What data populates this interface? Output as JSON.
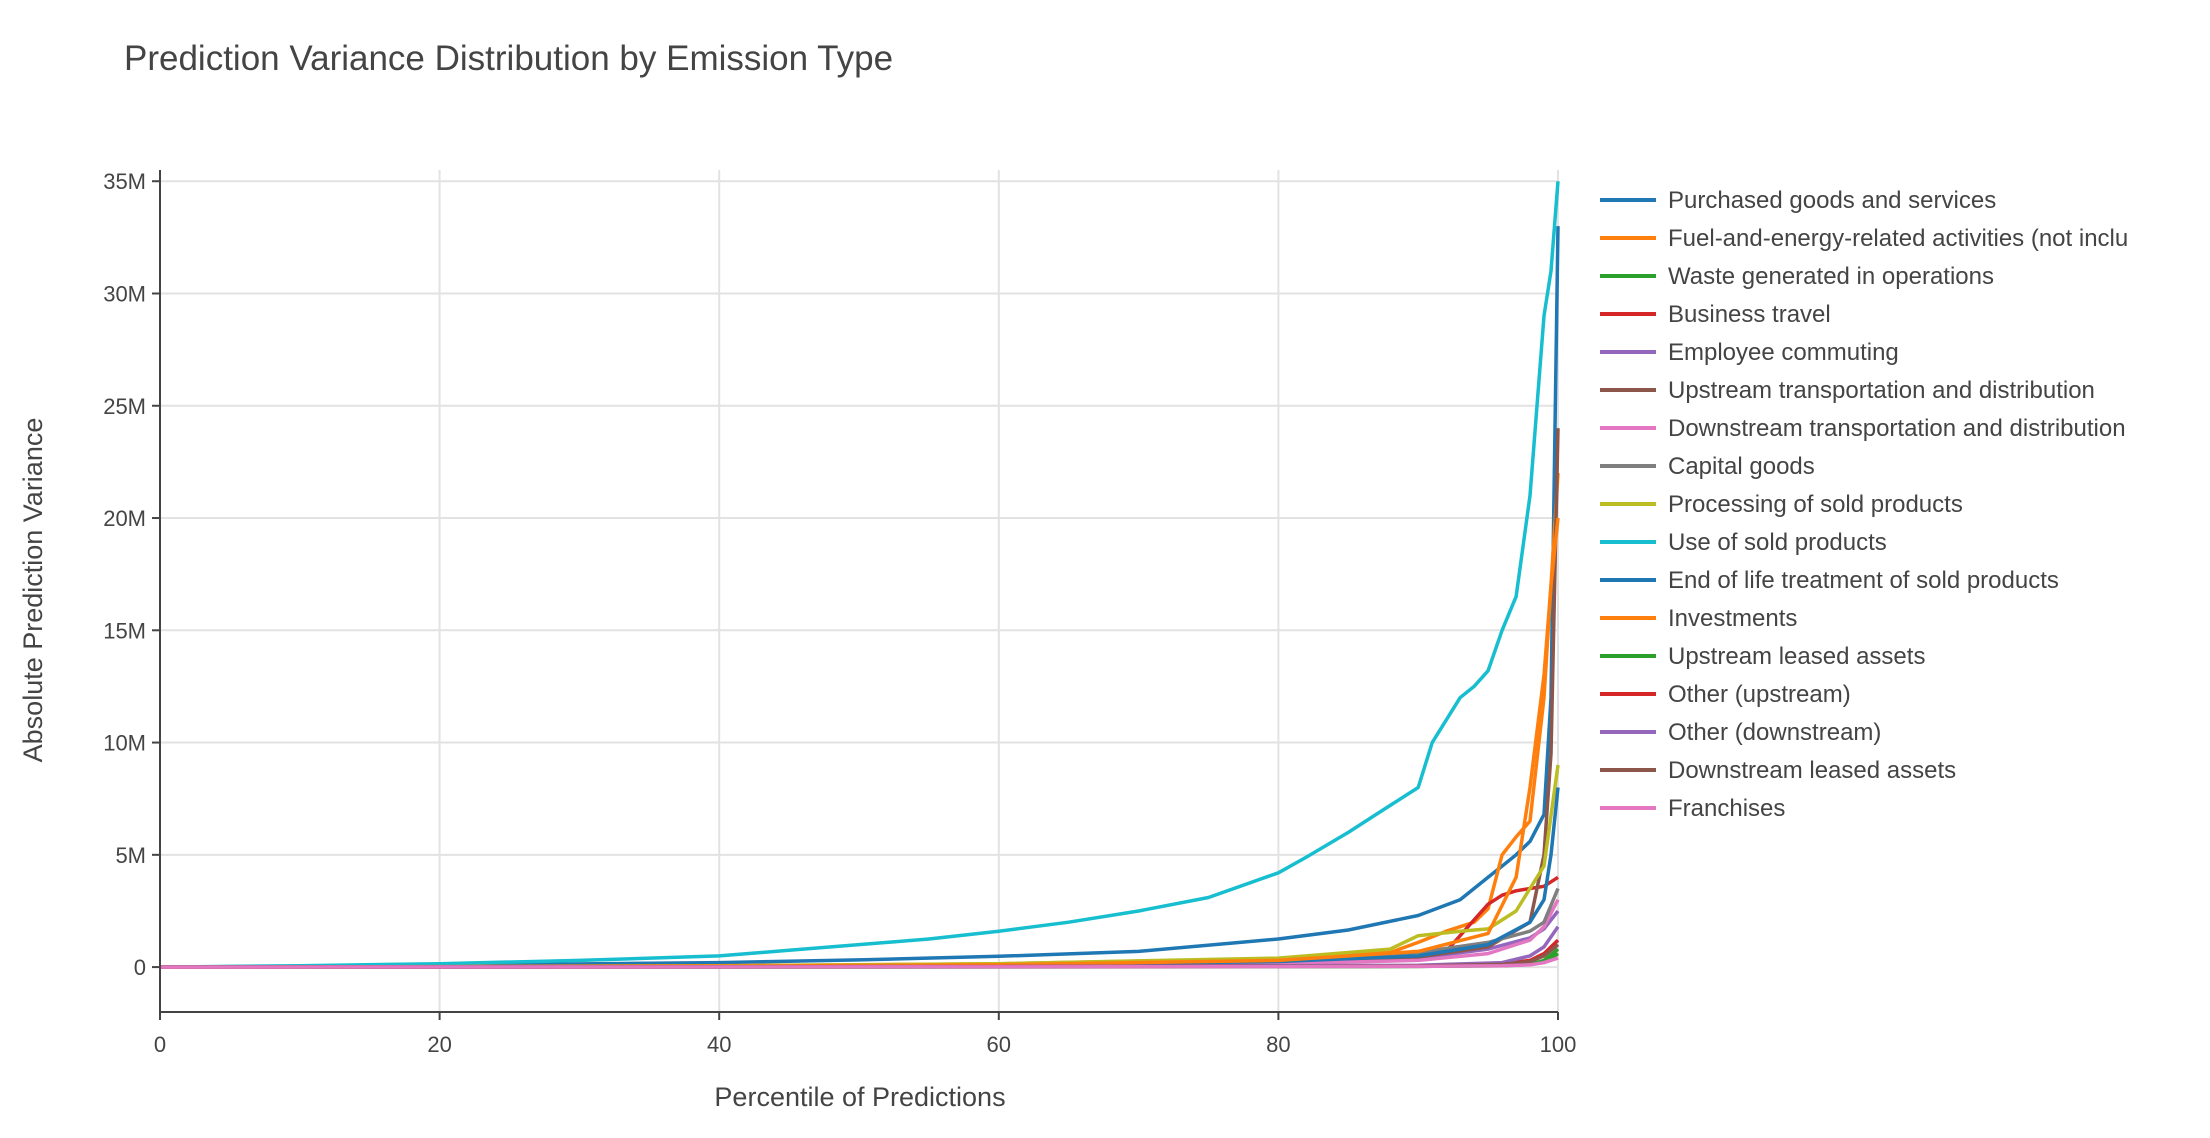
{
  "chart_data": {
    "type": "line",
    "title": "Prediction Variance Distribution by Emission Type",
    "xlabel": "Percentile of Predictions",
    "ylabel": "Absolute Prediction Variance",
    "xlim": [
      0,
      100
    ],
    "ylim": [
      -2000000,
      35500000
    ],
    "x_ticks": [
      0,
      20,
      40,
      60,
      80,
      100
    ],
    "x_tick_labels": [
      "0",
      "20",
      "40",
      "60",
      "80",
      "100"
    ],
    "y_ticks": [
      0,
      5000000,
      10000000,
      15000000,
      20000000,
      25000000,
      30000000,
      35000000
    ],
    "y_tick_labels": [
      "0",
      "5M",
      "10M",
      "15M",
      "20M",
      "25M",
      "30M",
      "35M"
    ],
    "grid": true,
    "legend_position": "right",
    "series": [
      {
        "name": "Purchased goods and services",
        "color": "#1f77b4",
        "x": [
          0,
          20,
          40,
          50,
          60,
          70,
          80,
          85,
          90,
          93,
          95,
          96,
          97,
          98,
          99,
          99.5,
          100
        ],
        "y": [
          0,
          80000,
          200000,
          320000,
          480000,
          700000,
          1250000,
          1650000,
          2300000,
          3000000,
          4000000,
          4500000,
          5000000,
          5600000,
          6800000,
          12000000,
          33000000
        ]
      },
      {
        "name": "Fuel-and-energy-related activities (not inclu",
        "color": "#ff7f0e",
        "x": [
          0,
          40,
          60,
          80,
          88,
          90,
          92,
          94,
          95,
          96,
          97,
          98,
          99,
          100
        ],
        "y": [
          0,
          60000,
          150000,
          380000,
          650000,
          1100000,
          1600000,
          2000000,
          2600000,
          5000000,
          5800000,
          6500000,
          12000000,
          22000000
        ]
      },
      {
        "name": "Waste generated in operations",
        "color": "#2ca02c",
        "x": [
          0,
          50,
          80,
          90,
          96,
          98,
          99,
          100
        ],
        "y": [
          0,
          5000,
          15000,
          30000,
          60000,
          120000,
          300000,
          800000
        ]
      },
      {
        "name": "Business travel",
        "color": "#d62728",
        "x": [
          0,
          40,
          60,
          80,
          90,
          92,
          93,
          94,
          95,
          96,
          97,
          98,
          99,
          100
        ],
        "y": [
          0,
          30000,
          70000,
          150000,
          350000,
          700000,
          1400000,
          2100000,
          2800000,
          3200000,
          3400000,
          3500000,
          3600000,
          4000000
        ]
      },
      {
        "name": "Employee commuting",
        "color": "#9467bd",
        "x": [
          0,
          40,
          60,
          80,
          90,
          95,
          98,
          99,
          100
        ],
        "y": [
          0,
          30000,
          80000,
          200000,
          400000,
          800000,
          1300000,
          1700000,
          2500000
        ]
      },
      {
        "name": "Upstream transportation and distribution",
        "color": "#8c564b",
        "x": [
          0,
          40,
          60,
          80,
          90,
          95,
          98,
          99,
          99.5,
          100
        ],
        "y": [
          0,
          30000,
          90000,
          250000,
          450000,
          900000,
          2000000,
          5000000,
          9500000,
          24000000
        ]
      },
      {
        "name": "Downstream transportation and distribution",
        "color": "#e377c2",
        "x": [
          0,
          40,
          60,
          80,
          90,
          95,
          98,
          99,
          100
        ],
        "y": [
          0,
          20000,
          60000,
          150000,
          300000,
          600000,
          1200000,
          1800000,
          3000000
        ]
      },
      {
        "name": "Capital goods",
        "color": "#7f7f7f",
        "x": [
          0,
          40,
          60,
          80,
          90,
          95,
          98,
          99,
          100
        ],
        "y": [
          0,
          40000,
          120000,
          350000,
          650000,
          1100000,
          1600000,
          2000000,
          3500000
        ]
      },
      {
        "name": "Processing of sold products",
        "color": "#bcbd22",
        "x": [
          0,
          40,
          60,
          80,
          88,
          90,
          93,
          95,
          97,
          98,
          99,
          100
        ],
        "y": [
          0,
          50000,
          150000,
          400000,
          800000,
          1400000,
          1600000,
          1700000,
          2500000,
          3500000,
          4500000,
          9000000
        ]
      },
      {
        "name": "Use of sold products",
        "color": "#17becf",
        "x": [
          0,
          10,
          20,
          30,
          40,
          45,
          50,
          55,
          60,
          65,
          70,
          75,
          80,
          82,
          85,
          88,
          90,
          91,
          92,
          93,
          94,
          95,
          96,
          97,
          98,
          98.5,
          99,
          99.5,
          100
        ],
        "y": [
          0,
          60000,
          150000,
          300000,
          500000,
          750000,
          1000000,
          1250000,
          1600000,
          2000000,
          2500000,
          3100000,
          4200000,
          4900000,
          6000000,
          7200000,
          8000000,
          10000000,
          11000000,
          12000000,
          12500000,
          13200000,
          15000000,
          16500000,
          21000000,
          25000000,
          29000000,
          31000000,
          35000000
        ]
      },
      {
        "name": "End of life treatment of sold products",
        "color": "#1f77b4",
        "x": [
          0,
          40,
          60,
          80,
          90,
          95,
          98,
          99,
          99.5,
          100
        ],
        "y": [
          0,
          30000,
          90000,
          250000,
          500000,
          1000000,
          2000000,
          3000000,
          5000000,
          8000000
        ]
      },
      {
        "name": "Investments",
        "color": "#ff7f0e",
        "x": [
          0,
          40,
          60,
          80,
          90,
          95,
          97,
          98,
          99,
          99.5,
          100
        ],
        "y": [
          0,
          40000,
          100000,
          300000,
          700000,
          1500000,
          4000000,
          8000000,
          13000000,
          17000000,
          20000000
        ]
      },
      {
        "name": "Upstream leased assets",
        "color": "#2ca02c",
        "x": [
          0,
          60,
          90,
          97,
          99,
          100
        ],
        "y": [
          0,
          10000,
          30000,
          80000,
          200000,
          600000
        ]
      },
      {
        "name": "Other (upstream)",
        "color": "#d62728",
        "x": [
          0,
          60,
          90,
          96,
          98,
          99,
          100
        ],
        "y": [
          0,
          20000,
          60000,
          150000,
          300000,
          600000,
          1200000
        ]
      },
      {
        "name": "Other (downstream)",
        "color": "#9467bd",
        "x": [
          0,
          60,
          90,
          96,
          98,
          99,
          100
        ],
        "y": [
          0,
          20000,
          80000,
          200000,
          500000,
          900000,
          1800000
        ]
      },
      {
        "name": "Downstream leased assets",
        "color": "#8c564b",
        "x": [
          0,
          60,
          90,
          96,
          98,
          99,
          100
        ],
        "y": [
          0,
          15000,
          50000,
          120000,
          250000,
          500000,
          1000000
        ]
      },
      {
        "name": "Franchises",
        "color": "#e377c2",
        "x": [
          0,
          60,
          90,
          96,
          98,
          99,
          100
        ],
        "y": [
          0,
          10000,
          30000,
          60000,
          100000,
          200000,
          400000
        ]
      }
    ]
  }
}
